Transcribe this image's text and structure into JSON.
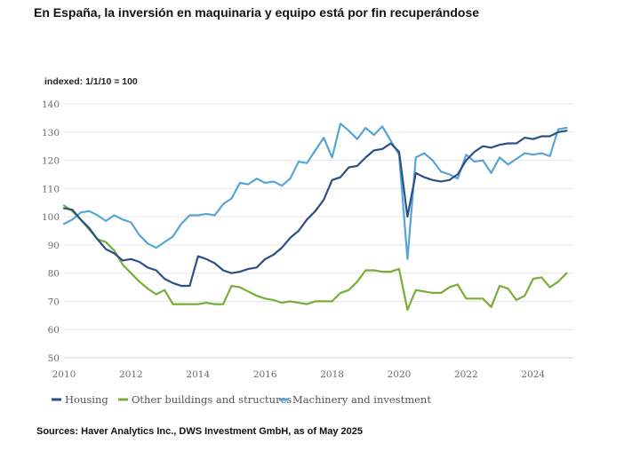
{
  "headline": "En España, la inversión en maquinaria y equipo está por fin recuperándose",
  "source": "Sources: Haver Analytics Inc., DWS Investment GmbH, as of May 2025",
  "chart_data": {
    "type": "line",
    "ylabel": "indexed: 1/1/10 = 100",
    "ylim": [
      50,
      140
    ],
    "y_ticks": [
      "50",
      "60",
      "70",
      "80",
      "90",
      "100",
      "110",
      "120",
      "130",
      "140"
    ],
    "xlim": [
      2010,
      2025.2
    ],
    "x_ticks": [
      "2010",
      "2012",
      "2014",
      "2016",
      "2018",
      "2020",
      "2022",
      "2024"
    ],
    "grid": true,
    "legend_position": "bottom-left",
    "series": [
      {
        "name": "Housing",
        "color": "#2d4f86",
        "x": [
          2010,
          2010.25,
          2010.5,
          2010.75,
          2011,
          2011.25,
          2011.5,
          2011.75,
          2012,
          2012.25,
          2012.5,
          2012.75,
          2013,
          2013.25,
          2013.5,
          2013.75,
          2014,
          2014.25,
          2014.5,
          2014.75,
          2015,
          2015.25,
          2015.5,
          2015.75,
          2016,
          2016.25,
          2016.5,
          2016.75,
          2017,
          2017.25,
          2017.5,
          2017.75,
          2018,
          2018.25,
          2018.5,
          2018.75,
          2019,
          2019.25,
          2019.5,
          2019.75,
          2020,
          2020.25,
          2020.5,
          2020.75,
          2021,
          2021.25,
          2021.5,
          2021.75,
          2022,
          2022.25,
          2022.5,
          2022.75,
          2023,
          2023.25,
          2023.5,
          2023.75,
          2024,
          2024.25,
          2024.5,
          2024.75,
          2025
        ],
        "values": [
          103,
          102.5,
          99,
          96,
          92,
          88.5,
          87,
          84.5,
          85,
          84,
          82,
          81,
          78,
          76.5,
          75.5,
          75.5,
          86,
          85,
          83.5,
          81,
          80,
          80.5,
          81.5,
          82,
          85,
          86.5,
          89,
          92.5,
          95,
          99,
          102,
          106,
          113,
          114,
          117.5,
          118,
          121,
          123.5,
          124,
          126,
          123,
          100,
          115.5,
          114,
          113,
          112.5,
          113,
          115,
          120,
          123,
          125,
          124.5,
          125.5,
          126,
          126,
          128,
          127.5,
          128.5,
          128.5,
          130,
          130.5
        ]
      },
      {
        "name": "Other buildings and structures",
        "color": "#78ad3a",
        "x": [
          2010,
          2010.25,
          2010.5,
          2010.75,
          2011,
          2011.25,
          2011.5,
          2011.75,
          2012,
          2012.25,
          2012.5,
          2012.75,
          2013,
          2013.25,
          2013.5,
          2013.75,
          2014,
          2014.25,
          2014.5,
          2014.75,
          2015,
          2015.25,
          2015.5,
          2015.75,
          2016,
          2016.25,
          2016.5,
          2016.75,
          2017,
          2017.25,
          2017.5,
          2017.75,
          2018,
          2018.25,
          2018.5,
          2018.75,
          2019,
          2019.25,
          2019.5,
          2019.75,
          2020,
          2020.25,
          2020.5,
          2020.75,
          2021,
          2021.25,
          2021.5,
          2021.75,
          2022,
          2022.25,
          2022.5,
          2022.75,
          2023,
          2023.25,
          2023.5,
          2023.75,
          2024,
          2024.25,
          2024.5,
          2024.75,
          2025
        ],
        "values": [
          104,
          102,
          99,
          95.5,
          92,
          91,
          88,
          83,
          80,
          77,
          74.5,
          72.5,
          74,
          69,
          69,
          69,
          69,
          69.5,
          69,
          69,
          75.5,
          75,
          73.5,
          72,
          71,
          70.5,
          69.5,
          70,
          69.5,
          69,
          70,
          70,
          70,
          73,
          74,
          77,
          81,
          81,
          80.5,
          80.5,
          81.5,
          67,
          74,
          73.5,
          73,
          73,
          75,
          76,
          71,
          71,
          71,
          68,
          75.5,
          74.5,
          70.5,
          72,
          78,
          78.5,
          75,
          77,
          80
        ]
      },
      {
        "name": "Machinery and investment",
        "color": "#56a5d6",
        "x": [
          2010,
          2010.25,
          2010.5,
          2010.75,
          2011,
          2011.25,
          2011.5,
          2011.75,
          2012,
          2012.25,
          2012.5,
          2012.75,
          2013,
          2013.25,
          2013.5,
          2013.75,
          2014,
          2014.25,
          2014.5,
          2014.75,
          2015,
          2015.25,
          2015.5,
          2015.75,
          2016,
          2016.25,
          2016.5,
          2016.75,
          2017,
          2017.25,
          2017.5,
          2017.75,
          2018,
          2018.25,
          2018.5,
          2018.75,
          2019,
          2019.25,
          2019.5,
          2019.75,
          2020,
          2020.25,
          2020.5,
          2020.75,
          2021,
          2021.25,
          2021.5,
          2021.75,
          2022,
          2022.25,
          2022.5,
          2022.75,
          2023,
          2023.25,
          2023.5,
          2023.75,
          2024,
          2024.25,
          2024.5,
          2024.75,
          2025
        ],
        "values": [
          97.5,
          99,
          101.5,
          102,
          100.5,
          98.5,
          100.5,
          99,
          98,
          93.5,
          90.5,
          89,
          91,
          93,
          97.5,
          100.5,
          100.5,
          101,
          100.5,
          104.5,
          106.5,
          112,
          111.5,
          113.5,
          112,
          112.5,
          111,
          113.5,
          119.5,
          119,
          123.5,
          128,
          121,
          133,
          130.5,
          127.5,
          131.5,
          129,
          132,
          127,
          122,
          85,
          121,
          122.5,
          120,
          116,
          115,
          113.5,
          122,
          119.5,
          120,
          115.5,
          121,
          118.5,
          120.5,
          122.5,
          122,
          122.5,
          121.5,
          131,
          131.5
        ]
      }
    ]
  }
}
